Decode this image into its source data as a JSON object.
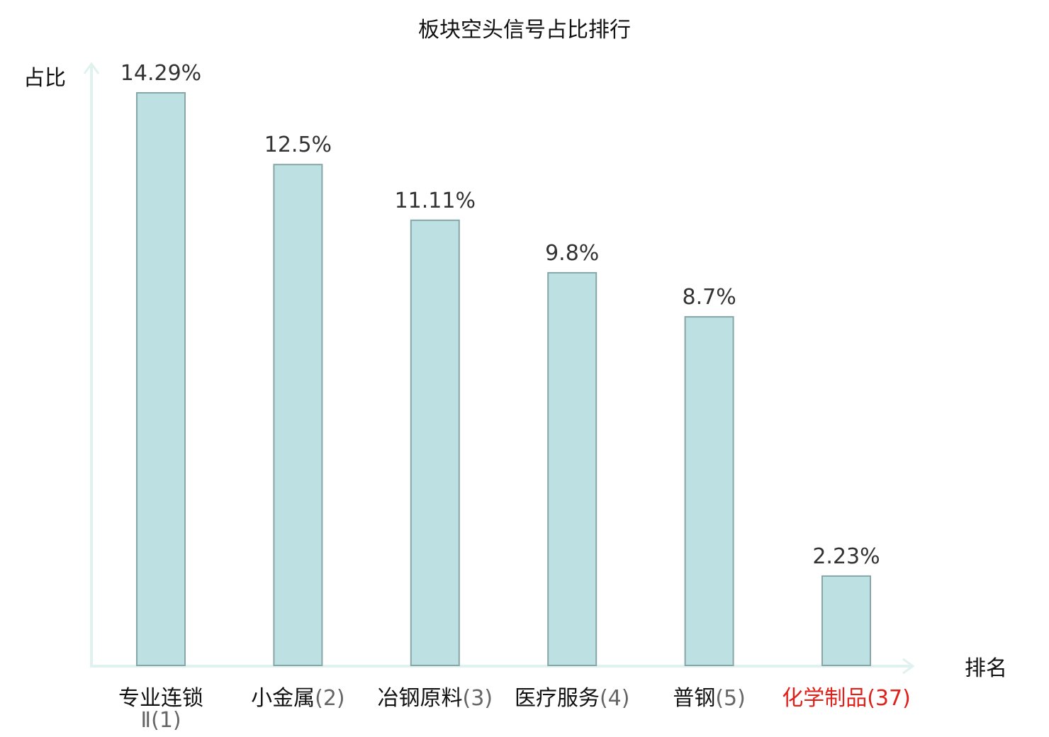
{
  "chart_data": {
    "type": "bar",
    "title": "板块空头信号占比排行",
    "ylabel": "占比",
    "xlabel": "排名",
    "categories": [
      {
        "name": "专业连锁Ⅱ",
        "rank": "(1)",
        "highlight": false
      },
      {
        "name": "小金属",
        "rank": "(2)",
        "highlight": false
      },
      {
        "name": "冶钢原料",
        "rank": "(3)",
        "highlight": false
      },
      {
        "name": "医疗服务",
        "rank": "(4)",
        "highlight": false
      },
      {
        "name": "普钢",
        "rank": "(5)",
        "highlight": false
      },
      {
        "name": "化学制品",
        "rank": "(37)",
        "highlight": true
      }
    ],
    "values": [
      14.29,
      12.5,
      11.11,
      9.8,
      8.7,
      2.23
    ],
    "value_labels": [
      "14.29%",
      "12.5%",
      "11.11%",
      "9.8%",
      "8.7%",
      "2.23%"
    ],
    "ylim": [
      0,
      14.29
    ],
    "grid": false,
    "colors": {
      "bar_fill": "#bde0e3",
      "bar_stroke": "#86a6a8",
      "axis": "#dff2ef",
      "highlight": "#e0201a",
      "rank_text": "#666666"
    }
  }
}
